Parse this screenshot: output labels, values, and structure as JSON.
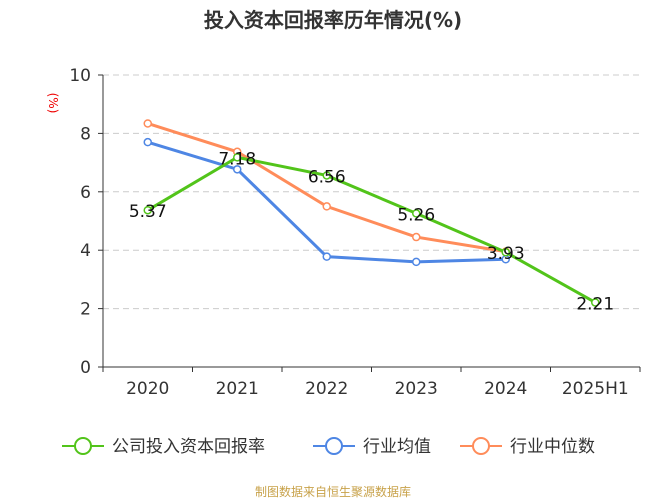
{
  "chart_data": {
    "type": "line",
    "title": "投入资本回报率历年情况(%)",
    "ylabel": "(%)",
    "categories": [
      "2020",
      "2021",
      "2022",
      "2023",
      "2024",
      "2025H1"
    ],
    "ylim": [
      0,
      10
    ],
    "yticks": [
      0,
      2,
      4,
      6,
      8,
      10
    ],
    "grid": true,
    "legend_position": "bottom",
    "series": [
      {
        "name": "公司投入资本回报率",
        "color": "#52c41a",
        "values": [
          5.37,
          7.18,
          6.56,
          5.26,
          3.93,
          2.21
        ],
        "labels": [
          "5.37",
          "7.18",
          "6.56",
          "5.26",
          "3.93",
          "2.21"
        ]
      },
      {
        "name": "行业均值",
        "color": "#4e86e4",
        "values": [
          7.7,
          6.77,
          3.78,
          3.6,
          3.69,
          null
        ]
      },
      {
        "name": "行业中位数",
        "color": "#ff8c5a",
        "values": [
          8.34,
          7.37,
          5.5,
          4.45,
          3.95,
          null
        ]
      }
    ],
    "source": "制图数据来自恒生聚源数据库"
  }
}
